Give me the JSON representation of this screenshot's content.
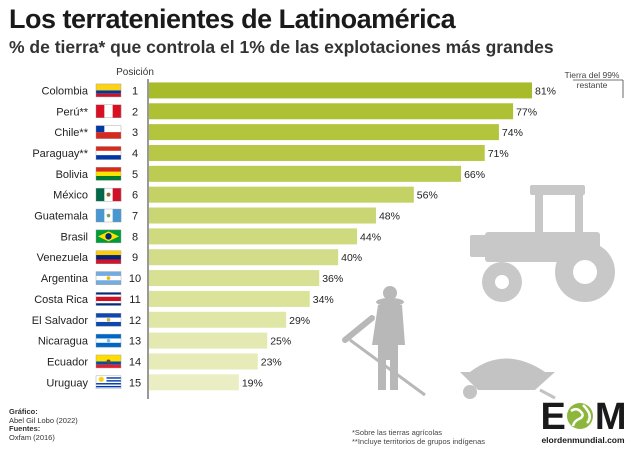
{
  "title": "Los terratenientes de Latinoamérica",
  "subtitle": "% de tierra* que controla el 1% de las explotaciones más grandes",
  "chart_data": {
    "type": "bar",
    "orientation": "horizontal",
    "rank_header": "Posición",
    "annotation": "Tierra del 99% restante",
    "value_suffix": "%",
    "xlim": [
      0,
      100
    ],
    "grid": false,
    "categories": [
      "Colombia",
      "Perú**",
      "Chile**",
      "Paraguay**",
      "Bolivia",
      "México",
      "Guatemala",
      "Brasil",
      "Venezuela",
      "Argentina",
      "Costa Rica",
      "El Salvador",
      "Nicaragua",
      "Ecuador",
      "Uruguay"
    ],
    "ranks": [
      1,
      2,
      3,
      4,
      5,
      6,
      7,
      8,
      9,
      10,
      11,
      12,
      13,
      14,
      15
    ],
    "values": [
      81,
      77,
      74,
      71,
      66,
      56,
      48,
      44,
      40,
      36,
      34,
      29,
      25,
      23,
      19
    ],
    "bar_colors": [
      "#a8bc2b",
      "#aec033",
      "#b3c43d",
      "#b8c846",
      "#bccb52",
      "#c4d164",
      "#cad673",
      "#cfd97e",
      "#d3dc88",
      "#d8e093",
      "#dbe39a",
      "#e0e6a6",
      "#e3e9b0",
      "#e6ebb8",
      "#eaeec2"
    ]
  },
  "credits": {
    "grafico_label": "Gráfico:",
    "grafico_value": "Abel Gil Lobo (2022)",
    "fuentes_label": "Fuentes:",
    "fuentes_value": "Oxfam (2016)"
  },
  "notes": {
    "note1": "*Sobre las tierras agrícolas",
    "note2": "**Incluye territorios de grupos indígenas"
  },
  "logo": {
    "letters_left": "E",
    "letters_right": "M",
    "url": "elordenmundial.com"
  },
  "colors": {
    "accent_green": "#a8bc2b",
    "icon_gray": "#c9c9c9",
    "logo_green": "#8cb63c"
  }
}
